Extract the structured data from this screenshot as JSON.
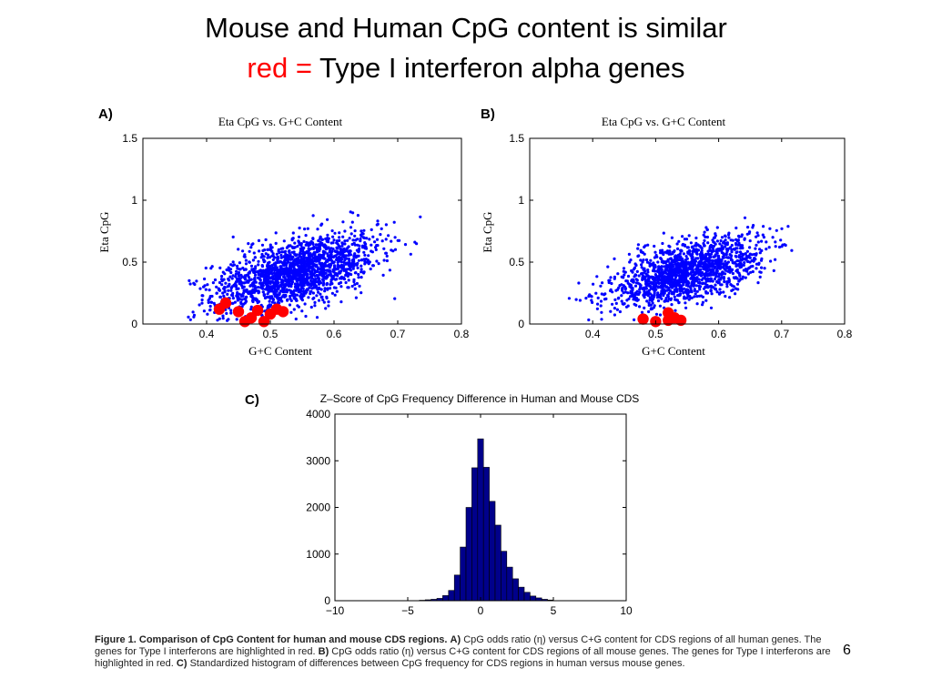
{
  "slide": {
    "title_line1": "Mouse and Human CpG content is similar",
    "title_line2_red": "red =",
    "title_line2_rest": " Type I interferon alpha genes",
    "page_number": "6"
  },
  "panels": {
    "a_label": "A)",
    "b_label": "B)",
    "c_label": "C)"
  },
  "caption": {
    "heading": "Figure 1. Comparison of CpG Content for human and mouse CDS regions.",
    "a_marker": "A)",
    "a_text": " CpG odds ratio (η) versus C+G content for CDS regions of all human genes. The genes for Type I interferons are highlighted in red.",
    "b_marker": "B)",
    "b_text": " CpG odds ratio (η) versus C+G content for CDS regions of all mouse genes. The genes for Type I interferons are highlighted in red.",
    "c_marker": "C)",
    "c_text": " Standardized histogram of differences between CpG frequency for CDS regions in human versus mouse genes."
  },
  "colors": {
    "scatter_blue": "#0000ff",
    "highlight_red": "#ff0000",
    "bar_fill": "#00008b",
    "title_red": "#ff0000"
  },
  "chart_data": [
    {
      "type": "scatter",
      "title": "Eta CpG vs. G+C Content",
      "xlabel": "G+C Content",
      "ylabel": "Eta CpG",
      "xlim": [
        0.3,
        0.8
      ],
      "ylim": [
        0,
        1.5
      ],
      "xticks": [
        0.4,
        0.5,
        0.6,
        0.7,
        0.8
      ],
      "xtick_labels": [
        "0.4",
        "0.5",
        "0.6",
        "0.7",
        "0.8"
      ],
      "yticks": [
        0,
        0.5,
        1,
        1.5
      ],
      "ytick_labels": [
        "0",
        "0.5",
        "1",
        "1.5"
      ],
      "cloud": {
        "x_min": 0.37,
        "x_max": 0.79,
        "center_x": 0.54,
        "center_y": 0.42,
        "slope": 1.35,
        "spread_x": 0.065,
        "spread_y": 0.14,
        "count": 1800
      },
      "highlight_points": [
        {
          "x": 0.42,
          "y": 0.12
        },
        {
          "x": 0.43,
          "y": 0.17
        },
        {
          "x": 0.45,
          "y": 0.1
        },
        {
          "x": 0.46,
          "y": 0.02
        },
        {
          "x": 0.47,
          "y": 0.05
        },
        {
          "x": 0.48,
          "y": 0.11
        },
        {
          "x": 0.49,
          "y": 0.02
        },
        {
          "x": 0.5,
          "y": 0.08
        },
        {
          "x": 0.51,
          "y": 0.12
        },
        {
          "x": 0.52,
          "y": 0.1
        }
      ]
    },
    {
      "type": "scatter",
      "title": "Eta CpG vs. G+C Content",
      "xlabel": "G+C Content",
      "ylabel": "Eta CpG",
      "xlim": [
        0.3,
        0.8
      ],
      "ylim": [
        0,
        1.5
      ],
      "xticks": [
        0.4,
        0.5,
        0.6,
        0.7,
        0.8
      ],
      "xtick_labels": [
        "0.4",
        "0.5",
        "0.6",
        "0.7",
        "0.8"
      ],
      "yticks": [
        0,
        0.5,
        1,
        1.5
      ],
      "ytick_labels": [
        "0",
        "0.5",
        "1",
        "1.5"
      ],
      "cloud": {
        "x_min": 0.36,
        "x_max": 0.77,
        "center_x": 0.55,
        "center_y": 0.42,
        "slope": 1.35,
        "spread_x": 0.06,
        "spread_y": 0.13,
        "count": 1500
      },
      "highlight_points": [
        {
          "x": 0.48,
          "y": 0.04
        },
        {
          "x": 0.5,
          "y": 0.02
        },
        {
          "x": 0.52,
          "y": 0.03
        },
        {
          "x": 0.52,
          "y": 0.09
        },
        {
          "x": 0.53,
          "y": 0.05
        },
        {
          "x": 0.54,
          "y": 0.03
        }
      ]
    },
    {
      "type": "bar",
      "title": "Z–Score of CpG Frequency Difference in Human and Mouse CDS",
      "xlim": [
        -10,
        10
      ],
      "ylim": [
        0,
        4000
      ],
      "xticks": [
        -10,
        -5,
        0,
        5,
        10
      ],
      "xtick_labels": [
        "−10",
        "−5",
        "0",
        "5",
        "10"
      ],
      "yticks": [
        0,
        1000,
        2000,
        3000,
        4000
      ],
      "ytick_labels": [
        "0",
        "1000",
        "2000",
        "3000",
        "4000"
      ],
      "bin_width": 0.4,
      "bins": [
        {
          "x": -4.0,
          "y": 10
        },
        {
          "x": -3.6,
          "y": 20
        },
        {
          "x": -3.2,
          "y": 30
        },
        {
          "x": -2.8,
          "y": 50
        },
        {
          "x": -2.4,
          "y": 110
        },
        {
          "x": -2.0,
          "y": 220
        },
        {
          "x": -1.6,
          "y": 550
        },
        {
          "x": -1.2,
          "y": 1150
        },
        {
          "x": -0.8,
          "y": 2000
        },
        {
          "x": -0.4,
          "y": 2850
        },
        {
          "x": 0.0,
          "y": 3470
        },
        {
          "x": 0.4,
          "y": 2860
        },
        {
          "x": 0.8,
          "y": 2130
        },
        {
          "x": 1.2,
          "y": 1620
        },
        {
          "x": 1.6,
          "y": 1060
        },
        {
          "x": 2.0,
          "y": 720
        },
        {
          "x": 2.4,
          "y": 470
        },
        {
          "x": 2.8,
          "y": 290
        },
        {
          "x": 3.2,
          "y": 180
        },
        {
          "x": 3.6,
          "y": 100
        },
        {
          "x": 4.0,
          "y": 60
        },
        {
          "x": 4.4,
          "y": 30
        },
        {
          "x": 4.8,
          "y": 15
        }
      ]
    }
  ]
}
